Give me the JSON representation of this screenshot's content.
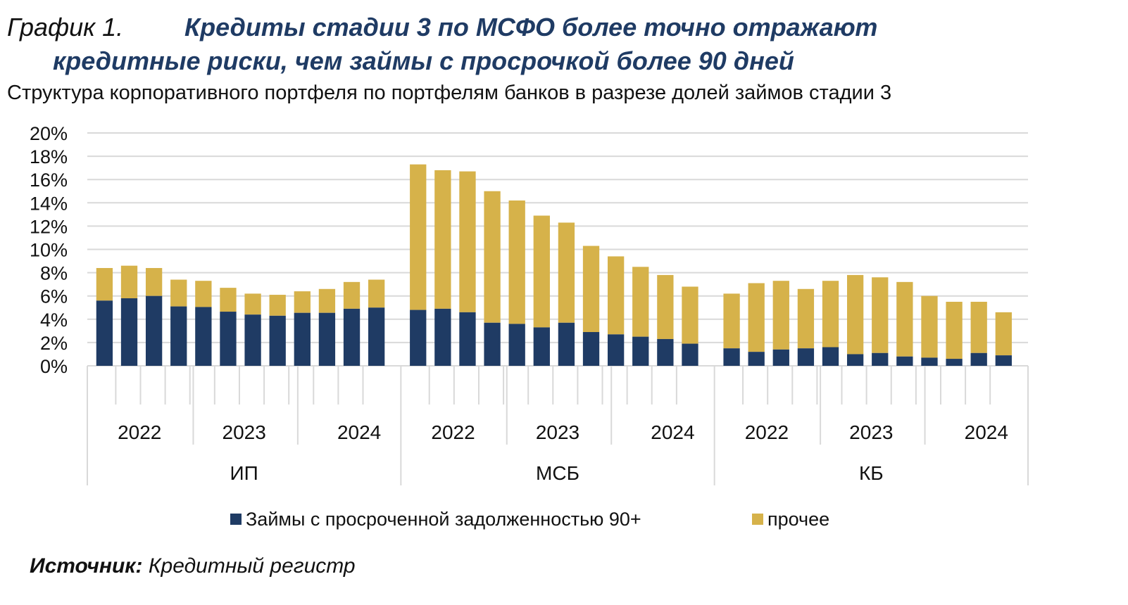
{
  "header": {
    "label": "График 1.",
    "title_line1": "Кредиты стадии 3 по МСФО более точно отражают",
    "title_line2": "кредитные риски, чем займы с просрочкой более 90 дней",
    "subtitle": "Структура корпоративного портфеля по портфелям банков в разрезе долей займов стадии 3"
  },
  "source": {
    "label": "Источник:",
    "text": "Кредитный регистр"
  },
  "colors": {
    "overdue": "#1f3b64",
    "other": "#d6b24a",
    "grid": "#d9d9d9"
  },
  "chart_data": {
    "type": "bar",
    "stacked": true,
    "ylim": [
      0,
      20
    ],
    "yticks": [
      "0%",
      "2%",
      "4%",
      "6%",
      "8%",
      "10%",
      "12%",
      "14%",
      "16%",
      "18%",
      "20%"
    ],
    "groups": [
      {
        "name": "ИП",
        "years": [
          "2022",
          "2023",
          "2024"
        ],
        "overdue": [
          5.6,
          5.8,
          6.0,
          5.1,
          5.05,
          4.65,
          4.4,
          4.3,
          4.55,
          4.55,
          4.9,
          5.0
        ],
        "total": [
          8.4,
          8.6,
          8.4,
          7.4,
          7.3,
          6.7,
          6.2,
          6.1,
          6.4,
          6.6,
          7.2,
          7.4
        ]
      },
      {
        "name": "МСБ",
        "years": [
          "2022",
          "2023",
          "2024"
        ],
        "overdue": [
          4.8,
          4.9,
          4.6,
          3.7,
          3.6,
          3.3,
          3.7,
          2.9,
          2.7,
          2.5,
          2.3,
          1.9
        ],
        "total": [
          17.3,
          16.8,
          16.7,
          15.0,
          14.2,
          12.9,
          12.3,
          10.3,
          9.4,
          8.5,
          7.8,
          6.8
        ]
      },
      {
        "name": "КБ",
        "years": [
          "2022",
          "2023",
          "2024"
        ],
        "overdue": [
          1.5,
          1.2,
          1.4,
          1.5,
          1.6,
          1.0,
          1.1,
          0.8,
          0.7,
          0.6,
          1.1,
          0.9
        ],
        "total": [
          6.2,
          7.1,
          7.3,
          6.6,
          7.3,
          7.8,
          7.6,
          7.2,
          6.0,
          5.5,
          5.5,
          4.6
        ]
      }
    ],
    "legend": [
      "Займы с просроченной задолженностью 90+",
      "прочее"
    ],
    "legend_position": "bottom"
  }
}
